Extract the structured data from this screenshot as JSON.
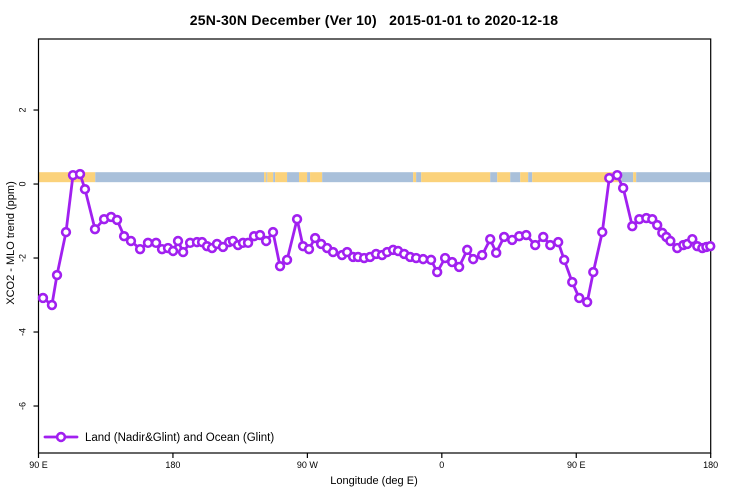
{
  "title": "25N-30N December (Ver 10)   2015-01-01 to 2020-12-18",
  "axes": {
    "xlabel": "Longitude (deg E)",
    "ylabel": "XCO2 - MLO trend (ppm)"
  },
  "legend": {
    "label": "Land (Nadir&Glint) and Ocean (Glint)"
  },
  "colors": {
    "series": "#a120f0",
    "marker_fill": "#ffffff",
    "land_band": "#fbd27b",
    "ocean_band": "#a9c0da",
    "axis": "#000000"
  },
  "chart_data": {
    "type": "line",
    "title": "25N-30N December (Ver 10)   2015-01-01 to 2020-12-18",
    "xlabel": "Longitude (deg E)",
    "ylabel": "XCO2 - MLO trend (ppm)",
    "xlim": [
      90,
      540
    ],
    "ylim": [
      -7.27,
      3.92
    ],
    "grid": false,
    "legend_position": "bottom-left",
    "xticks": [
      {
        "value": 90,
        "label": "90 E"
      },
      {
        "value": 180,
        "label": "180"
      },
      {
        "value": 270,
        "label": "90 W"
      },
      {
        "value": 360,
        "label": "0"
      },
      {
        "value": 450,
        "label": "90 E"
      },
      {
        "value": 540,
        "label": "180"
      }
    ],
    "yticks": [
      {
        "value": 2,
        "label": "2"
      },
      {
        "value": 0,
        "label": "0"
      },
      {
        "value": -2,
        "label": "-2"
      },
      {
        "value": -4,
        "label": "-4"
      },
      {
        "value": -6,
        "label": "-6"
      }
    ],
    "band": {
      "description": "land/ocean surface strip along longitude",
      "y_from": 0.05,
      "y_to": 0.32,
      "segments": [
        {
          "from": 90,
          "to": 128,
          "type": "land"
        },
        {
          "from": 128,
          "to": 241,
          "type": "ocean"
        },
        {
          "from": 241,
          "to": 242.5,
          "type": "land"
        },
        {
          "from": 242.5,
          "to": 243.2,
          "type": "ocean"
        },
        {
          "from": 243.2,
          "to": 247.1,
          "type": "land"
        },
        {
          "from": 247.1,
          "to": 248.4,
          "type": "ocean"
        },
        {
          "from": 248.4,
          "to": 256.4,
          "type": "land"
        },
        {
          "from": 256.4,
          "to": 264.4,
          "type": "ocean"
        },
        {
          "from": 264.4,
          "to": 269.8,
          "type": "land"
        },
        {
          "from": 269.8,
          "to": 271.8,
          "type": "ocean"
        },
        {
          "from": 271.8,
          "to": 279.9,
          "type": "land"
        },
        {
          "from": 279.9,
          "to": 340.8,
          "type": "ocean"
        },
        {
          "from": 340.8,
          "to": 342.8,
          "type": "land"
        },
        {
          "from": 342.8,
          "to": 346.2,
          "type": "ocean"
        },
        {
          "from": 346.2,
          "to": 392.4,
          "type": "land"
        },
        {
          "from": 392.4,
          "to": 397.1,
          "type": "ocean"
        },
        {
          "from": 397.1,
          "to": 405.8,
          "type": "land"
        },
        {
          "from": 405.8,
          "to": 412.5,
          "type": "ocean"
        },
        {
          "from": 412.5,
          "to": 417.8,
          "type": "land"
        },
        {
          "from": 417.8,
          "to": 420.5,
          "type": "ocean"
        },
        {
          "from": 420.5,
          "to": 480.1,
          "type": "land"
        },
        {
          "from": 480.1,
          "to": 488.1,
          "type": "ocean"
        },
        {
          "from": 488.1,
          "to": 490.1,
          "type": "land"
        },
        {
          "from": 490.1,
          "to": 540,
          "type": "ocean"
        }
      ]
    },
    "series": [
      {
        "name": "Land (Nadir&Glint) and Ocean (Glint)",
        "color": "#a120f0",
        "marker": "open-circle",
        "points": [
          [
            93.0,
            -3.08
          ],
          [
            99.0,
            -3.27
          ],
          [
            102.4,
            -2.46
          ],
          [
            108.4,
            -1.3
          ],
          [
            113.1,
            0.24
          ],
          [
            117.8,
            0.27
          ],
          [
            121.1,
            -0.14
          ],
          [
            127.8,
            -1.22
          ],
          [
            133.9,
            -0.95
          ],
          [
            138.6,
            -0.89
          ],
          [
            142.6,
            -0.97
          ],
          [
            147.3,
            -1.41
          ],
          [
            151.9,
            -1.54
          ],
          [
            158.0,
            -1.76
          ],
          [
            163.3,
            -1.59
          ],
          [
            168.7,
            -1.59
          ],
          [
            172.7,
            -1.76
          ],
          [
            176.7,
            -1.73
          ],
          [
            180.1,
            -1.81
          ],
          [
            183.4,
            -1.54
          ],
          [
            186.8,
            -1.84
          ],
          [
            191.5,
            -1.59
          ],
          [
            196.1,
            -1.57
          ],
          [
            199.5,
            -1.57
          ],
          [
            202.8,
            -1.68
          ],
          [
            206.2,
            -1.73
          ],
          [
            209.5,
            -1.62
          ],
          [
            213.5,
            -1.7
          ],
          [
            217.6,
            -1.57
          ],
          [
            220.2,
            -1.54
          ],
          [
            223.6,
            -1.65
          ],
          [
            226.9,
            -1.59
          ],
          [
            230.3,
            -1.59
          ],
          [
            234.3,
            -1.41
          ],
          [
            238.3,
            -1.38
          ],
          [
            242.4,
            -1.54
          ],
          [
            247.0,
            -1.3
          ],
          [
            251.7,
            -2.22
          ],
          [
            256.4,
            -2.05
          ],
          [
            263.1,
            -0.95
          ],
          [
            267.1,
            -1.68
          ],
          [
            271.1,
            -1.76
          ],
          [
            275.2,
            -1.46
          ],
          [
            279.2,
            -1.62
          ],
          [
            283.2,
            -1.73
          ],
          [
            287.2,
            -1.84
          ],
          [
            293.2,
            -1.92
          ],
          [
            296.6,
            -1.84
          ],
          [
            300.6,
            -1.97
          ],
          [
            303.9,
            -1.97
          ],
          [
            308.0,
            -2.0
          ],
          [
            312.0,
            -1.97
          ],
          [
            316.0,
            -1.89
          ],
          [
            320.0,
            -1.92
          ],
          [
            323.4,
            -1.84
          ],
          [
            327.4,
            -1.78
          ],
          [
            330.7,
            -1.81
          ],
          [
            334.8,
            -1.89
          ],
          [
            338.8,
            -1.97
          ],
          [
            342.8,
            -2.0
          ],
          [
            347.5,
            -2.03
          ],
          [
            352.8,
            -2.05
          ],
          [
            356.9,
            -2.38
          ],
          [
            362.2,
            -2.0
          ],
          [
            366.9,
            -2.11
          ],
          [
            371.6,
            -2.24
          ],
          [
            377.0,
            -1.78
          ],
          [
            381.0,
            -2.03
          ],
          [
            387.0,
            -1.92
          ],
          [
            392.4,
            -1.49
          ],
          [
            396.4,
            -1.86
          ],
          [
            401.7,
            -1.43
          ],
          [
            407.1,
            -1.51
          ],
          [
            411.8,
            -1.41
          ],
          [
            416.5,
            -1.38
          ],
          [
            422.5,
            -1.65
          ],
          [
            427.9,
            -1.43
          ],
          [
            432.6,
            -1.65
          ],
          [
            437.9,
            -1.57
          ],
          [
            441.9,
            -2.05
          ],
          [
            447.3,
            -2.65
          ],
          [
            452.0,
            -3.08
          ],
          [
            457.3,
            -3.19
          ],
          [
            461.4,
            -2.38
          ],
          [
            467.4,
            -1.3
          ],
          [
            472.1,
            0.16
          ],
          [
            477.4,
            0.24
          ],
          [
            481.4,
            -0.11
          ],
          [
            487.5,
            -1.14
          ],
          [
            492.2,
            -0.95
          ],
          [
            496.9,
            -0.92
          ],
          [
            500.9,
            -0.95
          ],
          [
            504.2,
            -1.11
          ],
          [
            507.6,
            -1.32
          ],
          [
            510.3,
            -1.43
          ],
          [
            513.0,
            -1.54
          ],
          [
            517.6,
            -1.73
          ],
          [
            521.7,
            -1.65
          ],
          [
            524.3,
            -1.62
          ],
          [
            527.7,
            -1.49
          ],
          [
            531.0,
            -1.68
          ],
          [
            534.4,
            -1.73
          ],
          [
            537.1,
            -1.7
          ],
          [
            539.7,
            -1.68
          ]
        ]
      }
    ]
  }
}
